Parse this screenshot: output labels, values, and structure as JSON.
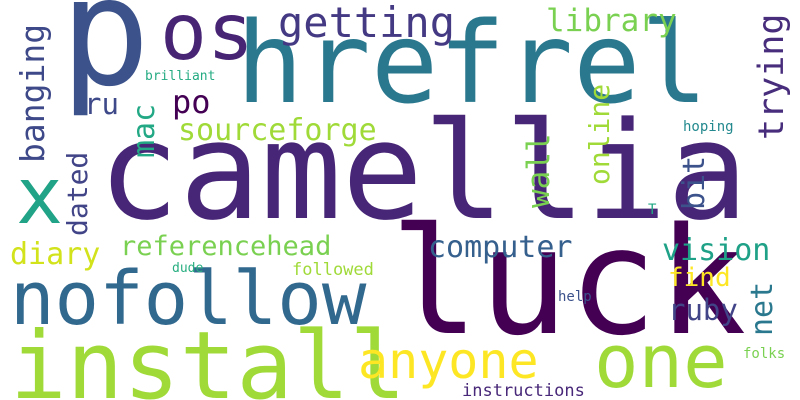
{
  "words": [
    {
      "id": "p",
      "text": "p",
      "color": "#3b528b"
    },
    {
      "id": "camellia",
      "text": "camellia",
      "color": "#482677"
    },
    {
      "id": "hrefrel",
      "text": "hrefrel",
      "color": "#2a788e"
    },
    {
      "id": "luck",
      "text": "luck",
      "color": "#440154"
    },
    {
      "id": "nofollow",
      "text": "nofollow",
      "color": "#31688e"
    },
    {
      "id": "install",
      "text": "install",
      "color": "#a0da39"
    },
    {
      "id": "one",
      "text": "one",
      "color": "#a0da39"
    },
    {
      "id": "os",
      "text": "os",
      "color": "#482475"
    },
    {
      "id": "x",
      "text": "x",
      "color": "#20a386"
    },
    {
      "id": "anyone",
      "text": "anyone",
      "color": "#fde725"
    },
    {
      "id": "getting",
      "text": "getting",
      "color": "#443983"
    },
    {
      "id": "library",
      "text": "library",
      "color": "#7ad151"
    },
    {
      "id": "sourceforge",
      "text": "sourceforge",
      "color": "#a0da39"
    },
    {
      "id": "computer",
      "text": "computer",
      "color": "#355f8d"
    },
    {
      "id": "referencehead",
      "text": "referencehead",
      "color": "#7ad151"
    },
    {
      "id": "vision",
      "text": "vision",
      "color": "#1fa187"
    },
    {
      "id": "ruby",
      "text": "ruby",
      "color": "#414487"
    },
    {
      "id": "po",
      "text": "po",
      "color": "#440154"
    },
    {
      "id": "ru",
      "text": "ru",
      "color": "#3e4989"
    },
    {
      "id": "mac",
      "text": "mac",
      "color": "#22a884"
    },
    {
      "id": "diary",
      "text": "diary",
      "color": "#d2e21b"
    },
    {
      "id": "find",
      "text": "find",
      "color": "#fde725"
    },
    {
      "id": "followed",
      "text": "followed",
      "color": "#a0da39"
    },
    {
      "id": "dude",
      "text": "dude",
      "color": "#28ae80"
    },
    {
      "id": "brilliant",
      "text": "brilliant",
      "color": "#25ab82"
    },
    {
      "id": "hoping",
      "text": "hoping",
      "color": "#23898e"
    },
    {
      "id": "help",
      "text": "help",
      "color": "#3b528b"
    },
    {
      "id": "folks",
      "text": "folks",
      "color": "#7ad151"
    },
    {
      "id": "instructions",
      "text": "instructions",
      "color": "#482878"
    },
    {
      "id": "t",
      "text": "T",
      "color": "#22a884"
    },
    {
      "id": "banging",
      "text": "banging",
      "color": "#3e4989"
    },
    {
      "id": "dated",
      "text": "dated",
      "color": "#414487"
    },
    {
      "id": "wall",
      "text": "wall",
      "color": "#7ad151"
    },
    {
      "id": "online",
      "text": "online",
      "color": "#a0da39"
    },
    {
      "id": "trying",
      "text": "trying",
      "color": "#472d7b"
    },
    {
      "id": "bit",
      "text": "bit",
      "color": "#3b528b"
    },
    {
      "id": "net",
      "text": "net",
      "color": "#2a788e"
    }
  ]
}
